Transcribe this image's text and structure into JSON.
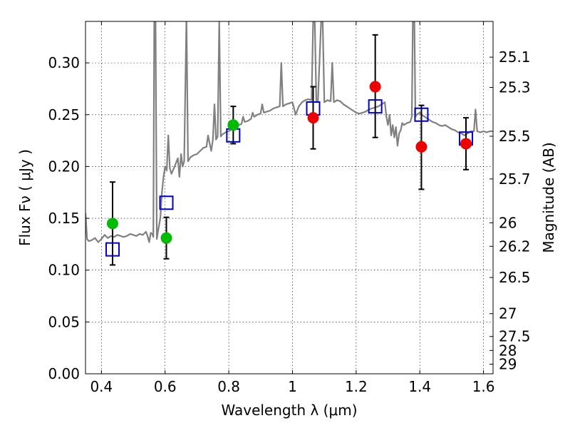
{
  "chart_data": {
    "type": "scatter",
    "xlabel": "Wavelength  λ (μm)",
    "ylabel": "Flux  Fν  ( μJy )",
    "y2label": "Magnitude (AB)",
    "xlim": [
      0.35,
      1.63
    ],
    "ylim": [
      0.0,
      0.34
    ],
    "grid": true,
    "x_ticks": [
      0.4,
      0.6,
      0.8,
      1.0,
      1.2,
      1.4,
      1.6
    ],
    "x_tick_labels": [
      "0.4",
      "0.6",
      "0.8",
      "1",
      "1.2",
      "1.4",
      "1.6"
    ],
    "y_ticks": [
      0.0,
      0.05,
      0.1,
      0.15,
      0.2,
      0.25,
      0.3
    ],
    "y_tick_labels": [
      "0.00",
      "0.05",
      "0.10",
      "0.15",
      "0.20",
      "0.25",
      "0.30"
    ],
    "mag_ticks": [
      {
        "flux": 0.3055,
        "label": "25.1"
      },
      {
        "flux": 0.2763,
        "label": "25.3"
      },
      {
        "flux": 0.2292,
        "label": "25.5"
      },
      {
        "flux": 0.188,
        "label": "25.7"
      },
      {
        "flux": 0.1457,
        "label": "26"
      },
      {
        "flux": 0.123,
        "label": "26.2"
      },
      {
        "flux": 0.0929,
        "label": "26.5"
      },
      {
        "flux": 0.058,
        "label": "27"
      },
      {
        "flux": 0.036,
        "label": "27.5"
      },
      {
        "flux": 0.0225,
        "label": "28"
      },
      {
        "flux": 0.0093,
        "label": "29"
      }
    ],
    "series": [
      {
        "name": "model spectrum",
        "style": "line",
        "color": "#808080",
        "points": [
          [
            0.35,
            0.155
          ],
          [
            0.355,
            0.13
          ],
          [
            0.36,
            0.128
          ],
          [
            0.37,
            0.129
          ],
          [
            0.38,
            0.131
          ],
          [
            0.39,
            0.127
          ],
          [
            0.4,
            0.13
          ],
          [
            0.41,
            0.134
          ],
          [
            0.42,
            0.131
          ],
          [
            0.43,
            0.133
          ],
          [
            0.44,
            0.132
          ],
          [
            0.45,
            0.134
          ],
          [
            0.46,
            0.133
          ],
          [
            0.47,
            0.132
          ],
          [
            0.48,
            0.133
          ],
          [
            0.49,
            0.135
          ],
          [
            0.5,
            0.134
          ],
          [
            0.51,
            0.133
          ],
          [
            0.52,
            0.135
          ],
          [
            0.53,
            0.134
          ],
          [
            0.54,
            0.137
          ],
          [
            0.545,
            0.133
          ],
          [
            0.55,
            0.127
          ],
          [
            0.555,
            0.136
          ],
          [
            0.56,
            0.135
          ],
          [
            0.563,
            0.132
          ],
          [
            0.566,
            0.34
          ],
          [
            0.57,
            0.34
          ],
          [
            0.574,
            0.13
          ],
          [
            0.578,
            0.138
          ],
          [
            0.585,
            0.15
          ],
          [
            0.59,
            0.175
          ],
          [
            0.595,
            0.19
          ],
          [
            0.6,
            0.2
          ],
          [
            0.605,
            0.196
          ],
          [
            0.61,
            0.23
          ],
          [
            0.615,
            0.198
          ],
          [
            0.62,
            0.193
          ],
          [
            0.63,
            0.2
          ],
          [
            0.64,
            0.208
          ],
          [
            0.645,
            0.19
          ],
          [
            0.65,
            0.212
          ],
          [
            0.655,
            0.2
          ],
          [
            0.66,
            0.205
          ],
          [
            0.667,
            0.345
          ],
          [
            0.672,
            0.205
          ],
          [
            0.68,
            0.209
          ],
          [
            0.69,
            0.211
          ],
          [
            0.7,
            0.212
          ],
          [
            0.71,
            0.215
          ],
          [
            0.72,
            0.218
          ],
          [
            0.73,
            0.219
          ],
          [
            0.735,
            0.23
          ],
          [
            0.74,
            0.222
          ],
          [
            0.745,
            0.215
          ],
          [
            0.75,
            0.226
          ],
          [
            0.755,
            0.26
          ],
          [
            0.76,
            0.226
          ],
          [
            0.765,
            0.229
          ],
          [
            0.77,
            0.34
          ],
          [
            0.775,
            0.229
          ],
          [
            0.78,
            0.231
          ],
          [
            0.79,
            0.233
          ],
          [
            0.8,
            0.234
          ],
          [
            0.81,
            0.236
          ],
          [
            0.82,
            0.237
          ],
          [
            0.83,
            0.24
          ],
          [
            0.84,
            0.241
          ],
          [
            0.845,
            0.248
          ],
          [
            0.85,
            0.243
          ],
          [
            0.86,
            0.244
          ],
          [
            0.87,
            0.246
          ],
          [
            0.875,
            0.252
          ],
          [
            0.88,
            0.248
          ],
          [
            0.89,
            0.25
          ],
          [
            0.9,
            0.251
          ],
          [
            0.905,
            0.26
          ],
          [
            0.91,
            0.252
          ],
          [
            0.92,
            0.253
          ],
          [
            0.93,
            0.254
          ],
          [
            0.94,
            0.256
          ],
          [
            0.95,
            0.257
          ],
          [
            0.96,
            0.258
          ],
          [
            0.965,
            0.3
          ],
          [
            0.97,
            0.258
          ],
          [
            0.98,
            0.26
          ],
          [
            0.99,
            0.261
          ],
          [
            1.0,
            0.262
          ],
          [
            1.005,
            0.256
          ],
          [
            1.01,
            0.25
          ],
          [
            1.02,
            0.258
          ],
          [
            1.03,
            0.262
          ],
          [
            1.04,
            0.264
          ],
          [
            1.05,
            0.265
          ],
          [
            1.06,
            0.264
          ],
          [
            1.065,
            0.34
          ],
          [
            1.07,
            0.34
          ],
          [
            1.075,
            0.262
          ],
          [
            1.08,
            0.263
          ],
          [
            1.09,
            0.34
          ],
          [
            1.095,
            0.34
          ],
          [
            1.1,
            0.262
          ],
          [
            1.11,
            0.264
          ],
          [
            1.12,
            0.263
          ],
          [
            1.125,
            0.3
          ],
          [
            1.13,
            0.262
          ],
          [
            1.14,
            0.264
          ],
          [
            1.15,
            0.263
          ],
          [
            1.16,
            0.26
          ],
          [
            1.17,
            0.258
          ],
          [
            1.18,
            0.256
          ],
          [
            1.19,
            0.254
          ],
          [
            1.2,
            0.252
          ],
          [
            1.21,
            0.251
          ],
          [
            1.22,
            0.252
          ],
          [
            1.23,
            0.253
          ],
          [
            1.24,
            0.255
          ],
          [
            1.25,
            0.256
          ],
          [
            1.26,
            0.257
          ],
          [
            1.27,
            0.258
          ],
          [
            1.28,
            0.26
          ],
          [
            1.29,
            0.262
          ],
          [
            1.295,
            0.248
          ],
          [
            1.3,
            0.24
          ],
          [
            1.305,
            0.25
          ],
          [
            1.31,
            0.23
          ],
          [
            1.315,
            0.24
          ],
          [
            1.32,
            0.228
          ],
          [
            1.325,
            0.238
          ],
          [
            1.33,
            0.22
          ],
          [
            1.335,
            0.232
          ],
          [
            1.34,
            0.235
          ],
          [
            1.345,
            0.242
          ],
          [
            1.35,
            0.24
          ],
          [
            1.36,
            0.242
          ],
          [
            1.37,
            0.243
          ],
          [
            1.375,
            0.248
          ],
          [
            1.378,
            0.34
          ],
          [
            1.383,
            0.34
          ],
          [
            1.386,
            0.248
          ],
          [
            1.39,
            0.25
          ],
          [
            1.4,
            0.252
          ],
          [
            1.41,
            0.249
          ],
          [
            1.42,
            0.247
          ],
          [
            1.43,
            0.245
          ],
          [
            1.44,
            0.243
          ],
          [
            1.45,
            0.242
          ],
          [
            1.46,
            0.24
          ],
          [
            1.47,
            0.239
          ],
          [
            1.48,
            0.24
          ],
          [
            1.49,
            0.238
          ],
          [
            1.5,
            0.236
          ],
          [
            1.51,
            0.235
          ],
          [
            1.52,
            0.233
          ],
          [
            1.53,
            0.232
          ],
          [
            1.54,
            0.23
          ],
          [
            1.55,
            0.232
          ],
          [
            1.56,
            0.234
          ],
          [
            1.57,
            0.234
          ],
          [
            1.575,
            0.255
          ],
          [
            1.58,
            0.234
          ],
          [
            1.59,
            0.233
          ],
          [
            1.6,
            0.234
          ],
          [
            1.61,
            0.233
          ],
          [
            1.62,
            0.234
          ],
          [
            1.63,
            0.234
          ]
        ]
      },
      {
        "name": "model photometry",
        "style": "open-square",
        "color": "#0000cc",
        "points": [
          [
            0.435,
            0.12
          ],
          [
            0.604,
            0.165
          ],
          [
            0.814,
            0.23
          ],
          [
            1.065,
            0.256
          ],
          [
            1.26,
            0.258
          ],
          [
            1.405,
            0.25
          ],
          [
            1.545,
            0.227
          ]
        ]
      },
      {
        "name": "observed (green)",
        "style": "filled-circle",
        "color": "#00bb00",
        "points": [
          [
            0.435,
            0.145
          ],
          [
            0.604,
            0.131
          ],
          [
            0.814,
            0.24
          ]
        ]
      },
      {
        "name": "observed (red)",
        "style": "filled-circle",
        "color": "#ee0000",
        "points": [
          [
            1.065,
            0.247
          ],
          [
            1.26,
            0.277
          ],
          [
            1.405,
            0.219
          ],
          [
            1.545,
            0.222
          ]
        ]
      },
      {
        "name": "error bars",
        "style": "errorbar",
        "color": "#000000",
        "bars": [
          {
            "x": 0.435,
            "lo": 0.105,
            "hi": 0.185
          },
          {
            "x": 0.604,
            "lo": 0.111,
            "hi": 0.151
          },
          {
            "x": 0.814,
            "lo": 0.222,
            "hi": 0.258
          },
          {
            "x": 1.065,
            "lo": 0.217,
            "hi": 0.277
          },
          {
            "x": 1.26,
            "lo": 0.228,
            "hi": 0.327
          },
          {
            "x": 1.405,
            "lo": 0.178,
            "hi": 0.259
          },
          {
            "x": 1.545,
            "lo": 0.197,
            "hi": 0.247
          }
        ]
      }
    ]
  }
}
